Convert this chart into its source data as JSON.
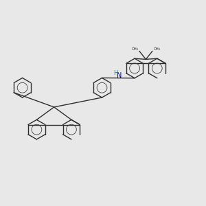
{
  "background_color": "#e8e8e8",
  "bond_color": "#2d2d2d",
  "nitrogen_color": "#0000bb",
  "hydrogen_color": "#009090",
  "figsize": [
    3.0,
    3.0
  ],
  "dpi": 100,
  "lw": 1.0,
  "r_hex": 0.48,
  "xlim": [
    0,
    10
  ],
  "ylim": [
    0,
    10
  ]
}
